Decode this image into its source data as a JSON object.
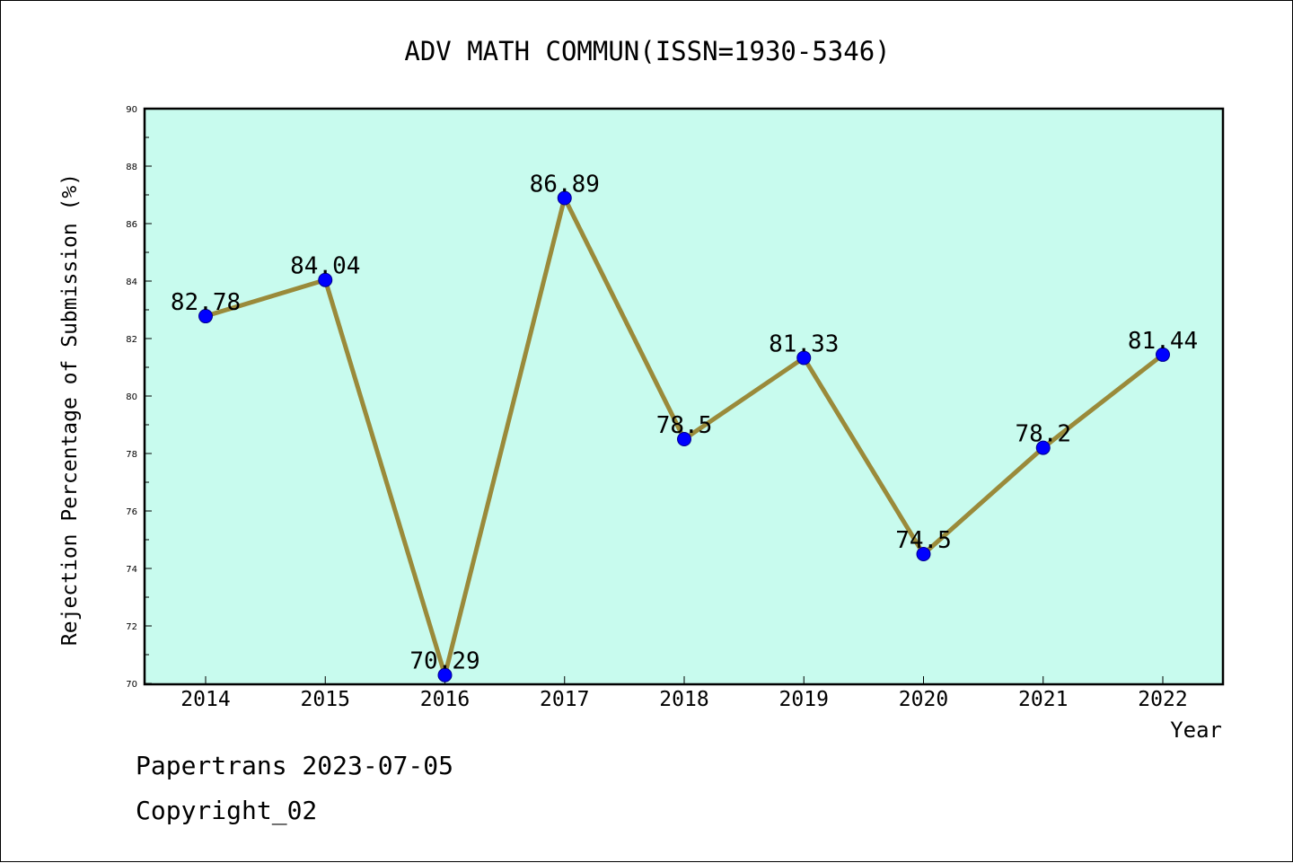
{
  "footer": {
    "line1": "Papertrans 2023-07-05",
    "line2": "Copyright_02"
  },
  "colors": {
    "plot_background": "#c8fbee",
    "line": "#9a8a3a",
    "marker_fill": "#0000ff",
    "marker_edge": "#00008b",
    "axes": "#000000",
    "page_background": "#ffffff"
  },
  "chart_data": {
    "type": "line",
    "title": "ADV MATH COMMUN(ISSN=1930-5346)",
    "xlabel": "Year",
    "ylabel": "Rejection Percentage of Submission (%)",
    "categories": [
      "2014",
      "2015",
      "2016",
      "2017",
      "2018",
      "2019",
      "2020",
      "2021",
      "2022"
    ],
    "series": [
      {
        "values": [
          82.78,
          84.04,
          70.29,
          86.89,
          78.5,
          81.33,
          74.5,
          78.2,
          81.44
        ],
        "labels": [
          "82.78",
          "84.04",
          "70.29",
          "86.89",
          "78.5",
          "81.33",
          "74.5",
          "78.2",
          "81.44"
        ]
      }
    ],
    "ylim": [
      70,
      90
    ],
    "yticks": [
      "70",
      "72",
      "74",
      "76",
      "78",
      "80",
      "82",
      "84",
      "86",
      "88",
      "90"
    ],
    "grid": false,
    "legend": "none"
  }
}
